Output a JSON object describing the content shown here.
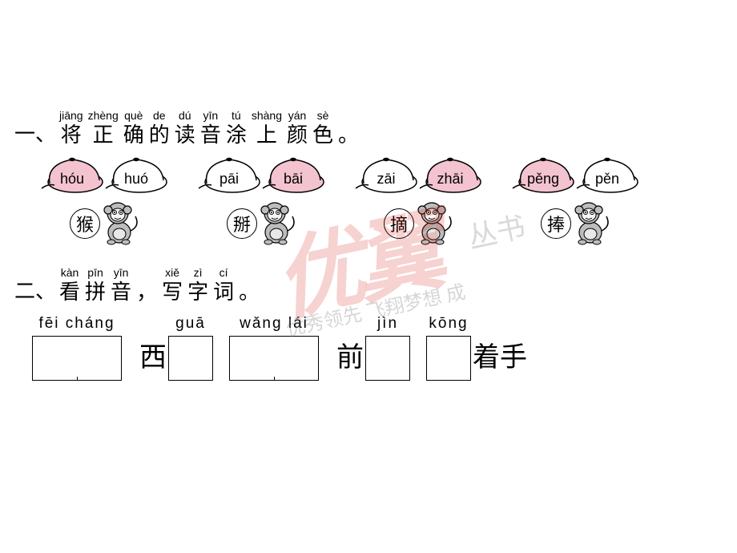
{
  "section1": {
    "number": "一、",
    "header": [
      {
        "py": "jiāng",
        "hz": "将"
      },
      {
        "py": "zhèng",
        "hz": "正"
      },
      {
        "py": "què",
        "hz": "确"
      },
      {
        "py": "de",
        "hz": "的"
      },
      {
        "py": "dú",
        "hz": "读"
      },
      {
        "py": "yīn",
        "hz": "音"
      },
      {
        "py": "tú",
        "hz": "涂"
      },
      {
        "py": "shàng",
        "hz": "上"
      },
      {
        "py": "yán",
        "hz": "颜"
      },
      {
        "py": "sè",
        "hz": "色"
      },
      {
        "py": "",
        "hz": "。"
      }
    ],
    "hat_fill": "#f4c3d0",
    "hat_empty": "#ffffff",
    "hat_stroke": "#000000",
    "pairs": [
      {
        "left": {
          "label": "hóu",
          "filled": true
        },
        "right": {
          "label": "huó",
          "filled": false
        },
        "char": "猴"
      },
      {
        "left": {
          "label": "pāi",
          "filled": false
        },
        "right": {
          "label": "bāi",
          "filled": true
        },
        "char": "掰"
      },
      {
        "left": {
          "label": "zāi",
          "filled": false
        },
        "right": {
          "label": "zhāi",
          "filled": true
        },
        "char": "摘"
      },
      {
        "left": {
          "label": "pěng",
          "filled": true
        },
        "right": {
          "label": "pěn",
          "filled": false
        },
        "char": "捧"
      }
    ]
  },
  "section2": {
    "number": "二、",
    "header": [
      {
        "py": "kàn",
        "hz": "看"
      },
      {
        "py": "pīn",
        "hz": "拼"
      },
      {
        "py": "yīn",
        "hz": "音"
      },
      {
        "py": "",
        "hz": "，"
      },
      {
        "py": "xiě",
        "hz": "写"
      },
      {
        "py": "zì",
        "hz": "字"
      },
      {
        "py": "cí",
        "hz": "词"
      },
      {
        "py": "",
        "hz": "。"
      }
    ],
    "items": [
      {
        "prefix": "",
        "pinyin": "fēi cháng",
        "cells": 2,
        "suffix": ""
      },
      {
        "prefix": "西",
        "pinyin": "guā",
        "cells": 1,
        "suffix": ""
      },
      {
        "prefix": "",
        "pinyin": "wǎng  lái",
        "cells": 2,
        "suffix": ""
      },
      {
        "prefix": "前",
        "pinyin": "jìn",
        "cells": 1,
        "suffix": ""
      },
      {
        "prefix": "",
        "pinyin": "kōng",
        "cells": 1,
        "suffix": "着手"
      }
    ]
  },
  "watermark": {
    "main": "优翼",
    "sub": "优秀领先  飞翔梦想 成",
    "side": "丛书"
  }
}
